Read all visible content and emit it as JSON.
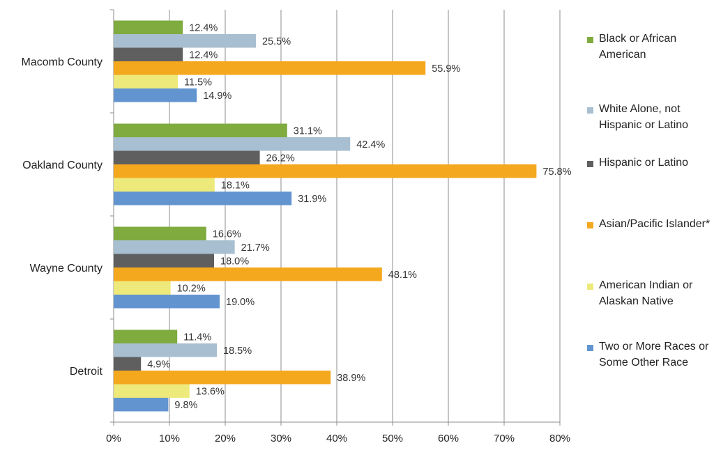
{
  "chart_data": {
    "type": "bar",
    "orientation": "horizontal",
    "categories": [
      "Macomb County",
      "Oakland County",
      "Wayne County",
      "Detroit"
    ],
    "series": [
      {
        "name": "Black or African American",
        "color": "#7fab3f",
        "values": [
          12.4,
          31.1,
          16.6,
          11.4
        ],
        "labels": [
          "12.4%",
          "31.1%",
          "16.6%",
          "11.4%"
        ]
      },
      {
        "name": "White Alone, not Hispanic or Latino",
        "color": "#a7bfd0",
        "values": [
          25.5,
          42.4,
          21.7,
          18.5
        ],
        "labels": [
          "25.5%",
          "42.4%",
          "21.7%",
          "18.5%"
        ]
      },
      {
        "name": "Hispanic or Latino",
        "color": "#5f5f5f",
        "values": [
          12.4,
          26.2,
          18.0,
          4.9
        ],
        "labels": [
          "12.4%",
          "26.2%",
          "18.0%",
          "4.9%"
        ]
      },
      {
        "name": "Asian/Pacific Islander*",
        "color": "#f4a81d",
        "values": [
          55.9,
          75.8,
          48.1,
          38.9
        ],
        "labels": [
          "55.9%",
          "75.8%",
          "48.1%",
          "38.9%"
        ]
      },
      {
        "name": "American Indian or Alaskan Native",
        "color": "#ede97a",
        "values": [
          11.5,
          18.1,
          10.2,
          13.6
        ],
        "labels": [
          "11.5%",
          "18.1%",
          "10.2%",
          "13.6%"
        ]
      },
      {
        "name": "Two or More Races or Some Other Race",
        "color": "#6295d0",
        "values": [
          14.9,
          31.9,
          19.0,
          9.8
        ],
        "labels": [
          "14.9%",
          "31.9%",
          "19.0%",
          "9.8%"
        ]
      }
    ],
    "x_ticks": [
      "0%",
      "10%",
      "20%",
      "30%",
      "40%",
      "50%",
      "60%",
      "70%",
      "80%"
    ],
    "xlim": [
      0,
      80
    ],
    "title": "",
    "xlabel": "",
    "ylabel": "",
    "grid": "vertical",
    "legend_position": "right"
  },
  "legend": {
    "items": [
      {
        "label": "Black or African American",
        "color": "#7fab3f"
      },
      {
        "label": "White Alone, not Hispanic or Latino",
        "color": "#a7bfd0"
      },
      {
        "label": "Hispanic or Latino",
        "color": "#5f5f5f"
      },
      {
        "label": "Asian/Pacific Islander*",
        "color": "#f4a81d"
      },
      {
        "label": "American Indian or Alaskan Native",
        "color": "#ede97a"
      },
      {
        "label": "Two or More Races or Some Other Race",
        "color": "#6295d0"
      }
    ]
  }
}
